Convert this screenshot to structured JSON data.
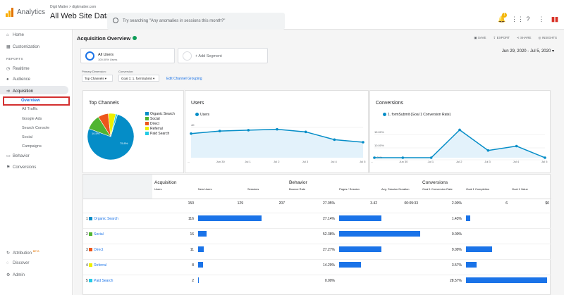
{
  "header": {
    "app_title": "Analytics",
    "account_path": "Digit Matter > digitmatter.com",
    "property_name": "All Web Site Data",
    "search_placeholder": "Try searching \"Any anomalies in sessions this month?\"",
    "notification_count": "1"
  },
  "sidebar": {
    "home": "Home",
    "customization": "Customization",
    "reports_label": "REPORTS",
    "realtime": "Realtime",
    "audience": "Audience",
    "acquisition": "Acquisition",
    "overview": "Overview",
    "all_traffic": "All Traffic",
    "google_ads": "Google Ads",
    "search_console": "Search Console",
    "social": "Social",
    "campaigns": "Campaigns",
    "behavior": "Behavior",
    "conversions": "Conversions",
    "attribution": "Attribution",
    "beta": "BETA",
    "discover": "Discover",
    "admin": "Admin"
  },
  "page": {
    "title": "Acquisition Overview",
    "save": "SAVE",
    "export": "EXPORT",
    "share": "SHARE",
    "insights": "INSIGHTS",
    "segment_name": "All Users",
    "segment_sub": "100.00% Users",
    "add_segment": "+ Add Segment",
    "date_range": "Jun 29, 2020 - Jul 5, 2020",
    "primary_dim_label": "Primary Dimension:",
    "primary_dim_value": "Top Channels",
    "conversion_label": "Conversion:",
    "conversion_value": "Goal 1: 1. formSubmit",
    "edit_grouping": "Edit Channel Grouping"
  },
  "top_channels": {
    "title": "Top Channels",
    "legend": [
      {
        "label": "Organic Search",
        "color": "#058dc7"
      },
      {
        "label": "Social",
        "color": "#50b432"
      },
      {
        "label": "Direct",
        "color": "#ed561b"
      },
      {
        "label": "Referral",
        "color": "#edef00"
      },
      {
        "label": "Paid Search",
        "color": "#24cbe5"
      }
    ],
    "slice_values": [
      75.8,
      10.5,
      7.2,
      5.2,
      1.3
    ],
    "labels_on_pie": [
      "75.8%",
      "10.5%"
    ]
  },
  "users_chart": {
    "title": "Users",
    "series_name": "Users",
    "y_ticks": [
      "40",
      "20"
    ],
    "x_ticks": [
      "...",
      "Jun 30",
      "Jul 1",
      "Jul 2",
      "Jul 3",
      "Jul 4",
      "Jul 5"
    ],
    "values": [
      28,
      31,
      32,
      33,
      30,
      21,
      18
    ]
  },
  "conv_chart": {
    "title": "Conversions",
    "series_name": "1. formSubmit (Goal 1 Conversion Rate)",
    "y_ticks": [
      "15.00%",
      "10.00%",
      "5.00%"
    ],
    "x_ticks": [
      "...",
      "Jun 30",
      "Jul 1",
      "Jul 2",
      "Jul 3",
      "Jul 4",
      "Jul 5"
    ],
    "values": [
      0.0,
      0.0,
      0.0,
      11.5,
      3.0,
      4.8,
      0.0
    ]
  },
  "table": {
    "groups": [
      "Acquisition",
      "Behavior",
      "Conversions"
    ],
    "columns": [
      "Users",
      "New Users",
      "Sessions",
      "Bounce Rate",
      "Pages / Session",
      "Avg. Session Duration",
      "Goal 1 Conversion Rate",
      "Goal 1 Completion",
      "Goal 1 Value"
    ],
    "totals": [
      "150",
      "129",
      "207",
      "27.05%",
      "3.42",
      "00:09:33",
      "2.90%",
      "6",
      "$0"
    ],
    "rows": [
      {
        "idx": "1",
        "channel": "Organic Search",
        "color": "#058dc7",
        "users": "116",
        "new_users_frac": 0.78,
        "bounce": "27.14%",
        "bounce_frac": 0.52,
        "conv": "1.43%",
        "conv_frac": 0.05
      },
      {
        "idx": "2",
        "channel": "Social",
        "color": "#50b432",
        "users": "16",
        "new_users_frac": 0.1,
        "bounce": "52.38%",
        "bounce_frac": 1.0,
        "conv": "0.00%",
        "conv_frac": 0
      },
      {
        "idx": "3",
        "channel": "Direct",
        "color": "#ed561b",
        "users": "11",
        "new_users_frac": 0.07,
        "bounce": "27.27%",
        "bounce_frac": 0.52,
        "conv": "9.09%",
        "conv_frac": 0.32
      },
      {
        "idx": "4",
        "channel": "Referral",
        "color": "#edef00",
        "users": "8",
        "new_users_frac": 0.06,
        "bounce": "14.29%",
        "bounce_frac": 0.27,
        "conv": "3.57%",
        "conv_frac": 0.13
      },
      {
        "idx": "5",
        "channel": "Paid Search",
        "color": "#24cbe5",
        "users": "2",
        "new_users_frac": 0.01,
        "bounce": "0.00%",
        "bounce_frac": 0,
        "conv": "28.57%",
        "conv_frac": 1.0
      }
    ]
  }
}
